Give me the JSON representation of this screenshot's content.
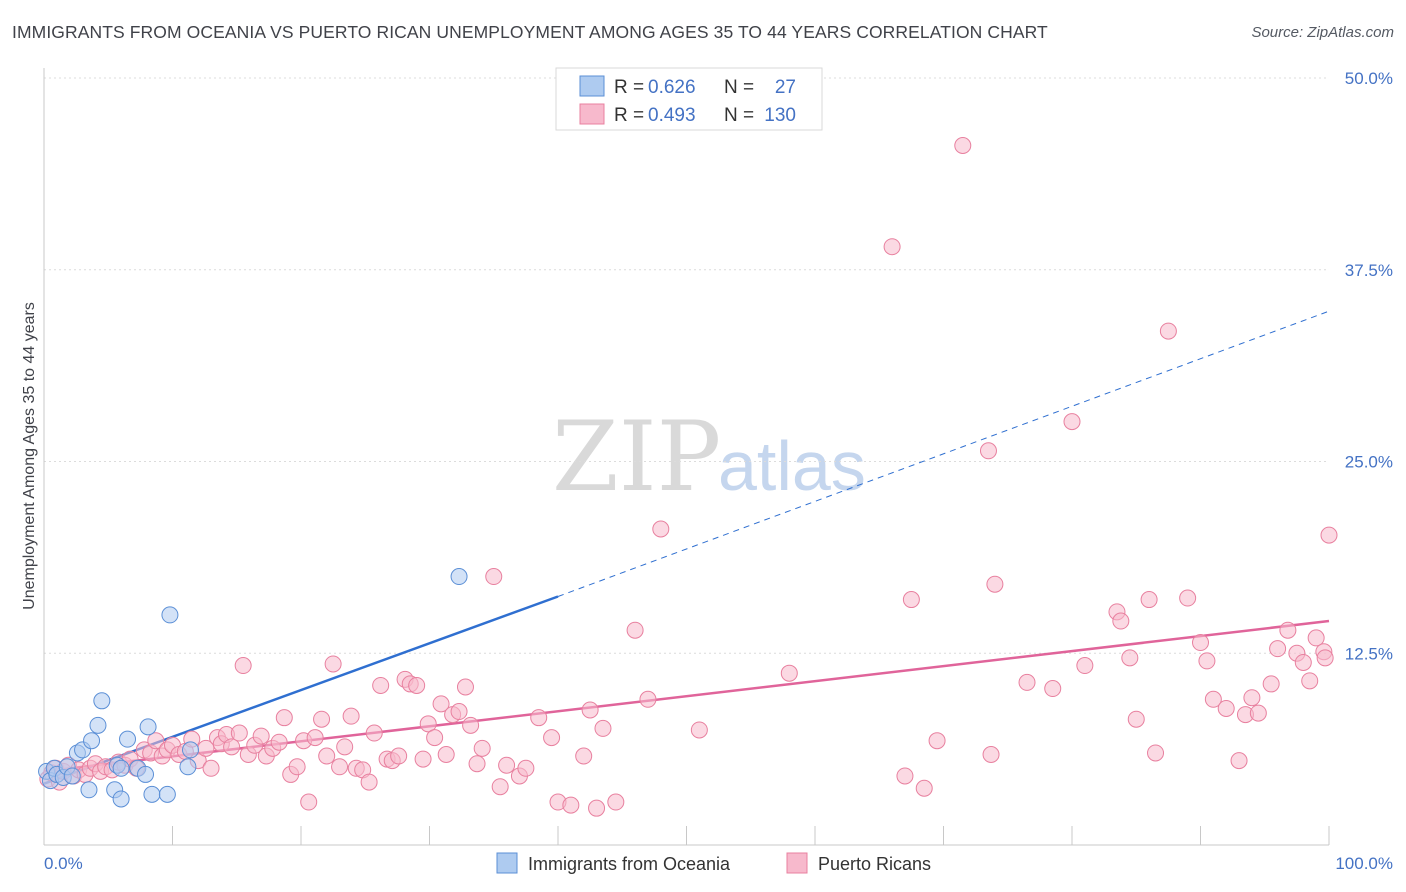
{
  "header": {
    "title": "IMMIGRANTS FROM OCEANIA VS PUERTO RICAN UNEMPLOYMENT AMONG AGES 35 TO 44 YEARS CORRELATION CHART",
    "source": "Source: ZipAtlas.com"
  },
  "watermark": {
    "zip": "ZIP",
    "atlas": "atlas"
  },
  "legend": {
    "r_label": "R = ",
    "n_label": "N = ",
    "entries": [
      {
        "r": "0.626",
        "n": "27",
        "color": "#aecbf0"
      },
      {
        "r": "0.493",
        "n": "130",
        "color": "#f7b9cc"
      }
    ]
  },
  "chart_data": {
    "type": "scatter",
    "title": "IMMIGRANTS FROM OCEANIA VS PUERTO RICAN UNEMPLOYMENT AMONG AGES 35 TO 44 YEARS CORRELATION CHART",
    "xlabel": "",
    "ylabel": "Unemployment Among Ages 35 to 44 years",
    "xlim": [
      0,
      100
    ],
    "ylim": [
      0,
      50
    ],
    "x_tick_labels": [
      "0.0%",
      "100.0%"
    ],
    "y_ticks": [
      12.5,
      25.0,
      37.5,
      50.0
    ],
    "y_tick_labels": [
      "12.5%",
      "25.0%",
      "37.5%",
      "50.0%"
    ],
    "grid": true,
    "series": [
      {
        "name": "Immigrants from Oceania",
        "color": "#aecbf0",
        "stroke": "#5b8fd6",
        "line_color": "#2f6fd0",
        "R": 0.626,
        "N": 27,
        "trend": {
          "x0": 0,
          "y0": 4.0,
          "x1": 40,
          "y1": 16.2,
          "dash_x1": 100,
          "dash_y1": 34.8
        },
        "points": [
          [
            0.2,
            4.8
          ],
          [
            0.5,
            4.2
          ],
          [
            0.8,
            5.0
          ],
          [
            1.0,
            4.6
          ],
          [
            1.5,
            4.4
          ],
          [
            1.8,
            5.1
          ],
          [
            2.2,
            4.5
          ],
          [
            2.6,
            6.0
          ],
          [
            3.0,
            6.2
          ],
          [
            3.5,
            3.6
          ],
          [
            3.7,
            6.8
          ],
          [
            4.2,
            7.8
          ],
          [
            4.5,
            9.4
          ],
          [
            5.5,
            3.6
          ],
          [
            5.7,
            5.2
          ],
          [
            6.0,
            5.0
          ],
          [
            6.0,
            3.0
          ],
          [
            6.5,
            6.9
          ],
          [
            7.3,
            5.0
          ],
          [
            7.9,
            4.6
          ],
          [
            8.1,
            7.7
          ],
          [
            8.4,
            3.3
          ],
          [
            9.6,
            3.3
          ],
          [
            9.8,
            15.0
          ],
          [
            11.2,
            5.1
          ],
          [
            11.4,
            6.2
          ],
          [
            32.3,
            17.5
          ]
        ]
      },
      {
        "name": "Puerto Ricans",
        "color": "#f7b9cc",
        "stroke": "#e8809f",
        "line_color": "#e0649a",
        "R": 0.493,
        "N": 130,
        "trend": {
          "x0": 0,
          "y0": 4.8,
          "x1": 100,
          "y1": 14.6
        },
        "points": [
          [
            0.3,
            4.3
          ],
          [
            0.6,
            4.7
          ],
          [
            0.9,
            5.0
          ],
          [
            1.2,
            4.1
          ],
          [
            1.5,
            4.8
          ],
          [
            1.9,
            5.2
          ],
          [
            2.3,
            4.5
          ],
          [
            2.7,
            4.9
          ],
          [
            3.2,
            4.6
          ],
          [
            3.6,
            5.0
          ],
          [
            4.0,
            5.3
          ],
          [
            4.4,
            4.8
          ],
          [
            4.8,
            5.1
          ],
          [
            5.3,
            4.9
          ],
          [
            5.8,
            5.4
          ],
          [
            6.3,
            5.2
          ],
          [
            6.7,
            5.6
          ],
          [
            7.2,
            5.0
          ],
          [
            7.8,
            6.2
          ],
          [
            8.3,
            6.0
          ],
          [
            8.7,
            6.8
          ],
          [
            9.2,
            5.8
          ],
          [
            9.6,
            6.2
          ],
          [
            10.0,
            6.5
          ],
          [
            10.5,
            5.9
          ],
          [
            11.0,
            6.1
          ],
          [
            11.5,
            6.9
          ],
          [
            12.0,
            5.5
          ],
          [
            12.6,
            6.3
          ],
          [
            13.0,
            5.0
          ],
          [
            13.5,
            7.0
          ],
          [
            13.8,
            6.6
          ],
          [
            14.2,
            7.2
          ],
          [
            14.6,
            6.4
          ],
          [
            15.2,
            7.3
          ],
          [
            15.5,
            11.7
          ],
          [
            15.9,
            5.9
          ],
          [
            16.4,
            6.5
          ],
          [
            16.9,
            7.1
          ],
          [
            17.3,
            5.8
          ],
          [
            17.8,
            6.3
          ],
          [
            18.3,
            6.7
          ],
          [
            18.7,
            8.3
          ],
          [
            19.2,
            4.6
          ],
          [
            19.7,
            5.1
          ],
          [
            20.2,
            6.8
          ],
          [
            20.6,
            2.8
          ],
          [
            21.1,
            7.0
          ],
          [
            21.6,
            8.2
          ],
          [
            22.0,
            5.8
          ],
          [
            22.5,
            11.8
          ],
          [
            23.0,
            5.1
          ],
          [
            23.4,
            6.4
          ],
          [
            23.9,
            8.4
          ],
          [
            24.3,
            5.0
          ],
          [
            24.8,
            4.9
          ],
          [
            25.3,
            4.1
          ],
          [
            25.7,
            7.3
          ],
          [
            26.2,
            10.4
          ],
          [
            26.7,
            5.6
          ],
          [
            27.1,
            5.5
          ],
          [
            27.6,
            5.8
          ],
          [
            28.1,
            10.8
          ],
          [
            28.5,
            10.5
          ],
          [
            29.0,
            10.4
          ],
          [
            29.5,
            5.6
          ],
          [
            29.9,
            7.9
          ],
          [
            30.4,
            7.0
          ],
          [
            30.9,
            9.2
          ],
          [
            31.3,
            5.9
          ],
          [
            31.8,
            8.5
          ],
          [
            32.3,
            8.7
          ],
          [
            32.8,
            10.3
          ],
          [
            33.2,
            7.8
          ],
          [
            33.7,
            5.3
          ],
          [
            34.1,
            6.3
          ],
          [
            35.0,
            17.5
          ],
          [
            35.5,
            3.8
          ],
          [
            36.0,
            5.2
          ],
          [
            37.0,
            4.5
          ],
          [
            37.5,
            5.0
          ],
          [
            38.5,
            8.3
          ],
          [
            39.5,
            7.0
          ],
          [
            40.0,
            2.8
          ],
          [
            41.0,
            2.6
          ],
          [
            42.0,
            5.8
          ],
          [
            42.5,
            8.8
          ],
          [
            43.0,
            2.4
          ],
          [
            43.5,
            7.6
          ],
          [
            44.5,
            2.8
          ],
          [
            46.0,
            14.0
          ],
          [
            47.0,
            9.5
          ],
          [
            48.0,
            20.6
          ],
          [
            51.0,
            7.5
          ],
          [
            58.0,
            11.2
          ],
          [
            66.0,
            39.0
          ],
          [
            67.0,
            4.5
          ],
          [
            67.5,
            16.0
          ],
          [
            68.5,
            3.7
          ],
          [
            69.5,
            6.8
          ],
          [
            71.5,
            45.6
          ],
          [
            73.5,
            25.7
          ],
          [
            73.7,
            5.9
          ],
          [
            74.0,
            17.0
          ],
          [
            76.5,
            10.6
          ],
          [
            78.5,
            10.2
          ],
          [
            80.0,
            27.6
          ],
          [
            81.0,
            11.7
          ],
          [
            83.5,
            15.2
          ],
          [
            83.8,
            14.6
          ],
          [
            84.5,
            12.2
          ],
          [
            85.0,
            8.2
          ],
          [
            86.0,
            16.0
          ],
          [
            86.5,
            6.0
          ],
          [
            87.5,
            33.5
          ],
          [
            89.0,
            16.1
          ],
          [
            90.0,
            13.2
          ],
          [
            90.5,
            12.0
          ],
          [
            91.0,
            9.5
          ],
          [
            92.0,
            8.9
          ],
          [
            93.0,
            5.5
          ],
          [
            93.5,
            8.5
          ],
          [
            94.0,
            9.6
          ],
          [
            94.5,
            8.6
          ],
          [
            95.5,
            10.5
          ],
          [
            96.0,
            12.8
          ],
          [
            96.8,
            14.0
          ],
          [
            97.5,
            12.5
          ],
          [
            98.0,
            11.9
          ],
          [
            98.5,
            10.7
          ],
          [
            99.0,
            13.5
          ],
          [
            99.6,
            12.6
          ],
          [
            99.7,
            12.2
          ],
          [
            100.0,
            20.2
          ]
        ]
      }
    ]
  }
}
